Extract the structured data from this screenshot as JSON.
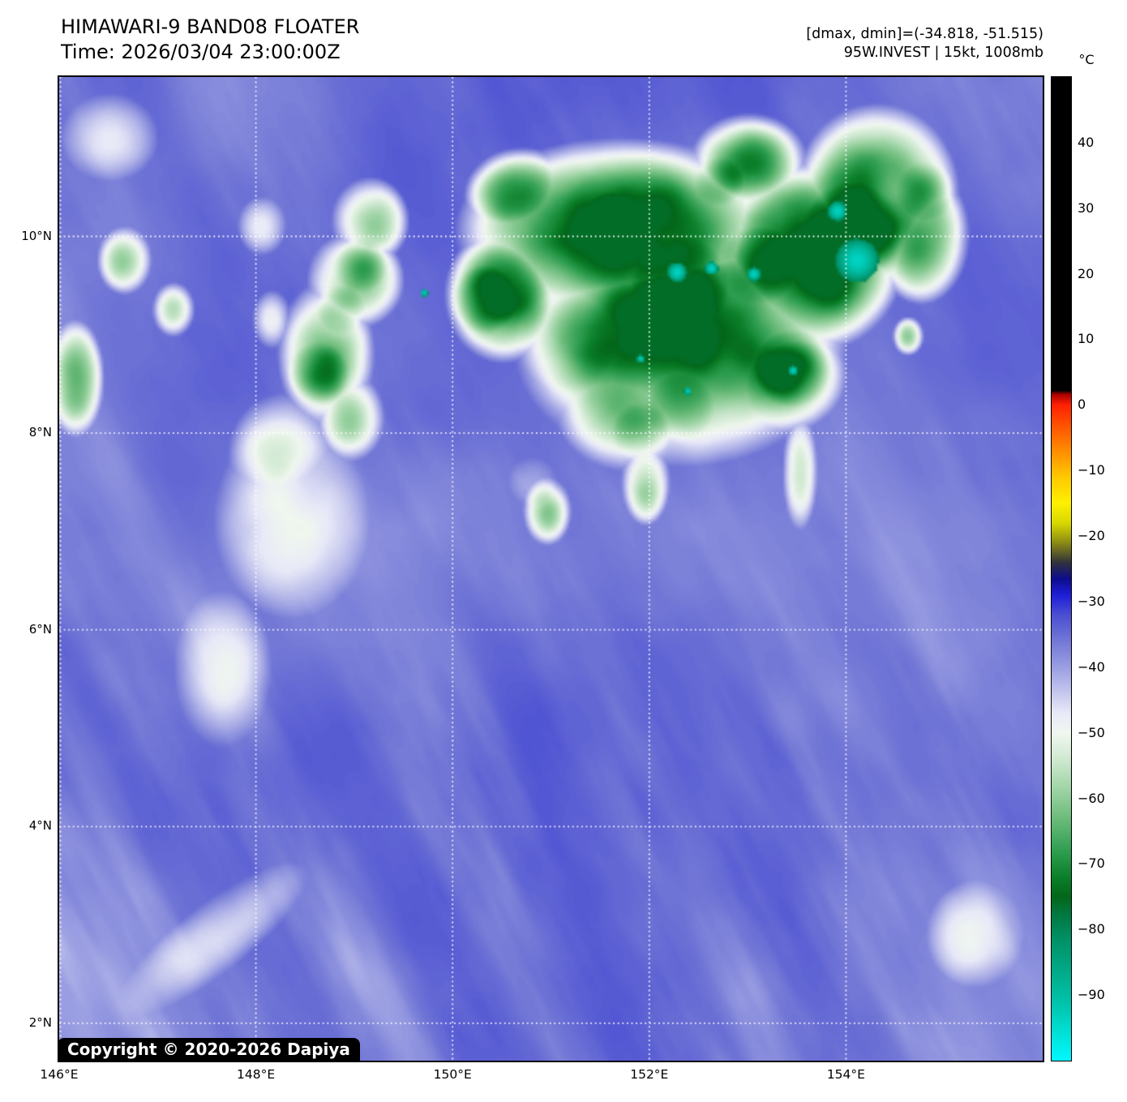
{
  "header": {
    "title": "HIMAWARI-9 BAND08 FLOATER",
    "time": "Time: 2026/03/04 23:00:00Z",
    "dmax_dmin": "[dmax, dmin]=(-34.818, -51.515)",
    "storm": "95W.INVEST | 15kt, 1008mb"
  },
  "copyright": "Copyright © 2020-2026 Dapiya",
  "colorbar": {
    "unit": "°C",
    "vmax": 50,
    "vmin": -100,
    "tick_values": [
      40,
      30,
      20,
      10,
      0,
      -10,
      -20,
      -30,
      -40,
      -50,
      -60,
      -70,
      -80,
      -90
    ],
    "tick_labels": [
      "40",
      "30",
      "20",
      "10",
      "0",
      "−10",
      "−20",
      "−30",
      "−40",
      "−50",
      "−60",
      "−70",
      "−80",
      "−90"
    ],
    "palette": [
      [
        50,
        "#000000"
      ],
      [
        2.2,
        "#000000"
      ],
      [
        1.6,
        "#aa0000"
      ],
      [
        0,
        "#ff2000"
      ],
      [
        -3,
        "#ff5000"
      ],
      [
        -7,
        "#ff8c00"
      ],
      [
        -11,
        "#ffc800"
      ],
      [
        -15,
        "#fff000"
      ],
      [
        -18,
        "#d8d800"
      ],
      [
        -21,
        "#8c8c14"
      ],
      [
        -24,
        "#32323a"
      ],
      [
        -26.5,
        "#0c0c8c"
      ],
      [
        -29,
        "#1e1ed8"
      ],
      [
        -32,
        "#4a4ed2"
      ],
      [
        -36,
        "#7277d6"
      ],
      [
        -40,
        "#9a9ee2"
      ],
      [
        -44,
        "#c6c8ee"
      ],
      [
        -47,
        "#e8e9f8"
      ],
      [
        -50,
        "#f0f7ef"
      ],
      [
        -54,
        "#cfe9d1"
      ],
      [
        -58,
        "#a5d7ab"
      ],
      [
        -63,
        "#6dbc7c"
      ],
      [
        -68,
        "#2f9e51"
      ],
      [
        -72,
        "#0b7f2a"
      ],
      [
        -75,
        "#03671a"
      ],
      [
        -78,
        "#007a44"
      ],
      [
        -82,
        "#00936a"
      ],
      [
        -87,
        "#00ad8c"
      ],
      [
        -92,
        "#00c7b2"
      ],
      [
        -96,
        "#00e2d8"
      ],
      [
        -100,
        "#00f8ff"
      ]
    ]
  },
  "map": {
    "extent": {
      "lon_min": 146,
      "lon_max": 156,
      "lat_min": 1.62,
      "lat_max": 11.62
    },
    "grid_lons": [
      146,
      148,
      150,
      152,
      154
    ],
    "grid_lats": [
      10,
      8,
      6,
      4,
      2
    ],
    "lon_ticks": [
      {
        "value": 146,
        "label": "146°E"
      },
      {
        "value": 148,
        "label": "148°E"
      },
      {
        "value": 150,
        "label": "150°E"
      },
      {
        "value": 152,
        "label": "152°E"
      },
      {
        "value": 154,
        "label": "154°E"
      }
    ],
    "lat_ticks": [
      {
        "value": 10,
        "label": "10°N"
      },
      {
        "value": 8,
        "label": "8°N"
      },
      {
        "value": 6,
        "label": "6°N"
      },
      {
        "value": 4,
        "label": "4°N"
      },
      {
        "value": 2,
        "label": "2°N"
      }
    ]
  },
  "chart_data": {
    "type": "heatmap",
    "title": "HIMAWARI-9 BAND08 FLOATER",
    "time": "2026/03/04 23:00:00Z",
    "satellite": "HIMAWARI-9",
    "band": "BAND08",
    "dmax": -34.818,
    "dmin": -51.515,
    "invest_id": "95W.INVEST",
    "wind_kt": 15,
    "pressure_mb": 1008,
    "colorbar_unit": "°C",
    "colorbar_range": [
      -100,
      50
    ],
    "colorbar_ticks": [
      40,
      30,
      20,
      10,
      0,
      -10,
      -20,
      -30,
      -40,
      -50,
      -60,
      -70,
      -80,
      -90
    ],
    "x_axis": {
      "ticks": [
        "146°E",
        "148°E",
        "150°E",
        "152°E",
        "154°E"
      ],
      "range": [
        146,
        156
      ]
    },
    "y_axis": {
      "ticks": [
        "2°N",
        "4°N",
        "6°N",
        "8°N",
        "10°N"
      ],
      "range": [
        1.62,
        11.62
      ]
    },
    "legend_position": "right",
    "grid": "dotted-white",
    "scene": {
      "background": {
        "temp": -30.5,
        "noise_amp": 7
      },
      "wisp": {
        "angle_deg": 63,
        "scale_along": 2.6,
        "scale_across": 15,
        "strength": 12
      },
      "blobs": [
        [
          0.57,
          0.155,
          0.17,
          0.095,
          34
        ],
        [
          0.63,
          0.27,
          0.17,
          0.125,
          36
        ],
        [
          0.76,
          0.18,
          0.1,
          0.1,
          36
        ],
        [
          0.83,
          0.12,
          0.085,
          0.095,
          40
        ],
        [
          0.875,
          0.16,
          0.05,
          0.07,
          30
        ],
        [
          0.45,
          0.22,
          0.06,
          0.07,
          34
        ],
        [
          0.47,
          0.12,
          0.06,
          0.05,
          28
        ],
        [
          0.3,
          0.205,
          0.05,
          0.05,
          32
        ],
        [
          0.27,
          0.28,
          0.05,
          0.075,
          32
        ],
        [
          0.295,
          0.345,
          0.035,
          0.045,
          26
        ],
        [
          0.315,
          0.145,
          0.04,
          0.045,
          26
        ],
        [
          0.58,
          0.33,
          0.08,
          0.07,
          30
        ],
        [
          0.595,
          0.41,
          0.025,
          0.045,
          24
        ],
        [
          0.72,
          0.3,
          0.08,
          0.065,
          30
        ],
        [
          0.752,
          0.4,
          0.018,
          0.06,
          18
        ],
        [
          0.495,
          0.44,
          0.025,
          0.035,
          22
        ],
        [
          0.235,
          0.45,
          0.08,
          0.1,
          15
        ],
        [
          0.225,
          0.385,
          0.055,
          0.065,
          16
        ],
        [
          0.165,
          0.6,
          0.05,
          0.08,
          12
        ],
        [
          0.015,
          0.305,
          0.03,
          0.06,
          24
        ],
        [
          0.065,
          0.185,
          0.028,
          0.035,
          20
        ],
        [
          0.115,
          0.235,
          0.022,
          0.028,
          17
        ],
        [
          0.215,
          0.245,
          0.02,
          0.03,
          15
        ],
        [
          0.205,
          0.15,
          0.025,
          0.03,
          13
        ],
        [
          0.05,
          0.06,
          0.05,
          0.045,
          12
        ],
        [
          0.862,
          0.262,
          0.016,
          0.02,
          20
        ],
        [
          0.155,
          0.875,
          0.12,
          0.035,
          11,
          -38
        ],
        [
          0.93,
          0.87,
          0.05,
          0.055,
          13
        ],
        [
          0.7,
          0.085,
          0.06,
          0.05,
          30
        ]
      ],
      "cores": [
        [
          0.805,
          0.155,
          0.05,
          10
        ],
        [
          0.63,
          0.21,
          0.05,
          8
        ],
        [
          0.71,
          0.19,
          0.04,
          8
        ],
        [
          0.745,
          0.295,
          0.04,
          9
        ],
        [
          0.63,
          0.335,
          0.035,
          8
        ],
        [
          0.59,
          0.36,
          0.03,
          8
        ],
        [
          0.43,
          0.225,
          0.035,
          8
        ],
        [
          0.262,
          0.3,
          0.032,
          9
        ],
        [
          0.285,
          0.235,
          0.025,
          8
        ],
        [
          0.305,
          0.19,
          0.028,
          8
        ],
        [
          0.56,
          0.14,
          0.025,
          6
        ],
        [
          0.48,
          0.41,
          0.025,
          6
        ],
        [
          0.88,
          0.115,
          0.03,
          7
        ],
        [
          0.67,
          0.105,
          0.025,
          6
        ],
        [
          0.515,
          0.27,
          0.05,
          5
        ]
      ],
      "cold_spots": [
        [
          0.81,
          0.185,
          0.022
        ],
        [
          0.79,
          0.135,
          0.01
        ],
        [
          0.627,
          0.197,
          0.01
        ],
        [
          0.662,
          0.193,
          0.007
        ],
        [
          0.705,
          0.199,
          0.007
        ],
        [
          0.59,
          0.285,
          0.004
        ],
        [
          0.745,
          0.297,
          0.005
        ],
        [
          0.37,
          0.218,
          0.004
        ],
        [
          0.638,
          0.318,
          0.004
        ]
      ]
    }
  }
}
